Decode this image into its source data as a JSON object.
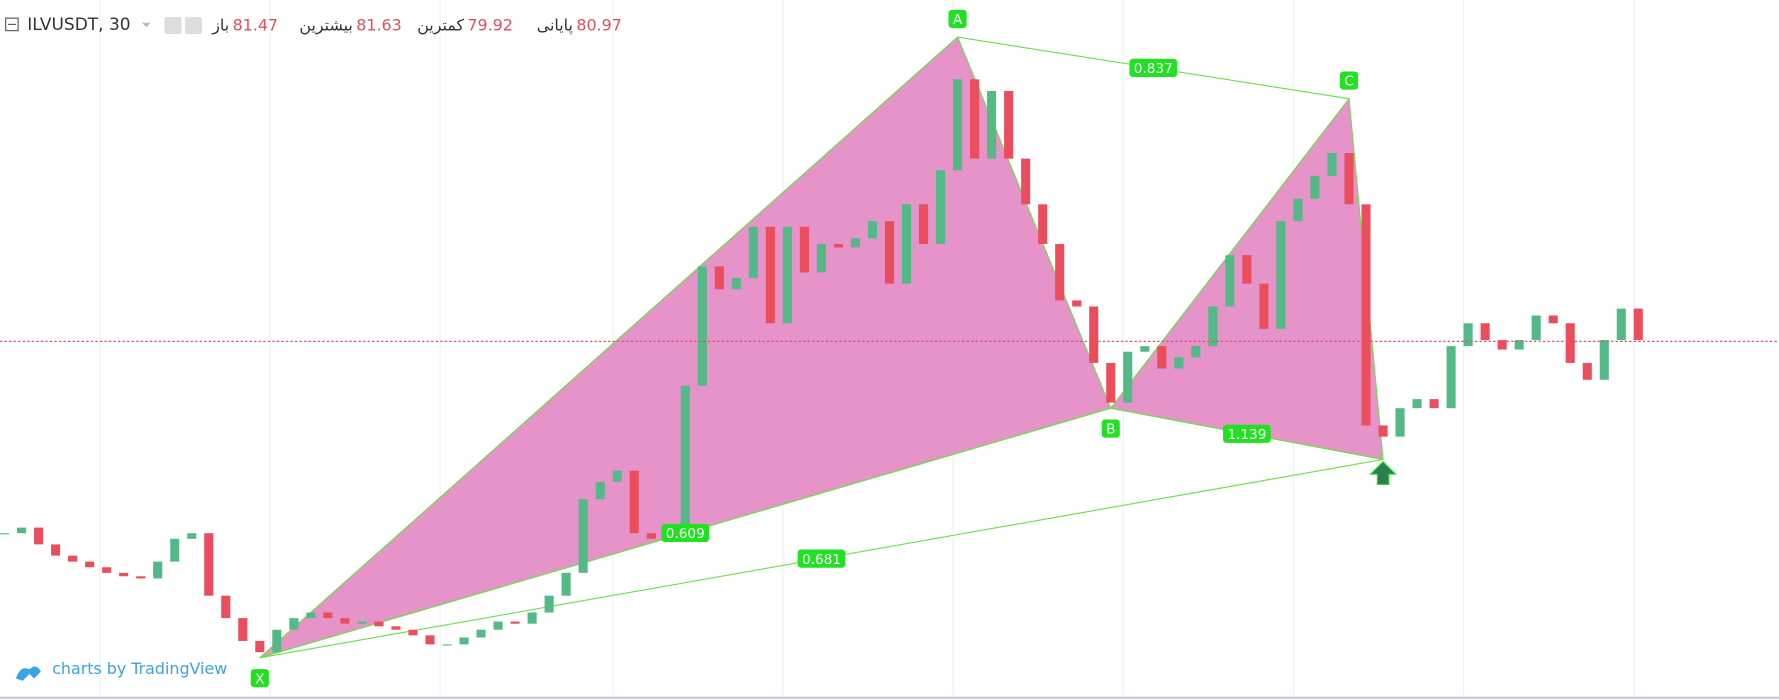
{
  "chart_data": {
    "type": "candlestick",
    "title": "ILVUSDT, 30",
    "ohlc_legend": [
      {
        "label": "باز",
        "value": 81.47
      },
      {
        "label": "بیشترین",
        "value": 81.63
      },
      {
        "label": "کمترین",
        "value": 79.92
      },
      {
        "label": "پایانی",
        "value": 80.97
      }
    ],
    "ylim": [
      72.65,
      88.89
    ],
    "up_color": "#53b987",
    "down_color": "#eb4d5c",
    "close": [
      76.52,
      76.65,
      76.26,
      76.0,
      75.86,
      75.73,
      75.6,
      75.52,
      75.47,
      75.86,
      76.39,
      76.52,
      75.07,
      74.55,
      74.02,
      73.76,
      74.28,
      74.55,
      74.68,
      74.55,
      74.42,
      74.47,
      74.36,
      74.28,
      74.15,
      73.94,
      73.94,
      74.1,
      74.28,
      74.47,
      74.42,
      74.68,
      75.07,
      75.6,
      77.31,
      77.71,
      77.97,
      76.52,
      76.39,
      76.52,
      79.94,
      82.71,
      82.18,
      82.44,
      83.63,
      81.39,
      83.63,
      82.57,
      83.23,
      83.15,
      83.36,
      83.76,
      82.31,
      84.15,
      83.23,
      84.94,
      87.05,
      85.21,
      86.78,
      85.21,
      84.15,
      83.23,
      81.92,
      81.78,
      80.47,
      79.55,
      80.73,
      80.86,
      80.34,
      80.6,
      80.86,
      81.78,
      82.97,
      82.31,
      81.26,
      83.76,
      84.28,
      84.81,
      85.34,
      84.15,
      79.02,
      78.76,
      79.42,
      79.63,
      79.42,
      80.86,
      81.39,
      81.0,
      80.78,
      81.0,
      81.57,
      81.39,
      80.47,
      80.08,
      81.0,
      81.73,
      81.0
    ],
    "pattern": {
      "fill": "#e593c8",
      "line_color": "#6bdf4a",
      "label_color": "#22e022",
      "points": [
        {
          "label": "X",
          "x": 15,
          "price": 73.63
        },
        {
          "label": "A",
          "x": 56,
          "price": 88.03
        },
        {
          "label": "B",
          "x": 65,
          "price": 79.42
        },
        {
          "label": "C",
          "x": 79,
          "price": 86.6
        },
        {
          "x": 81,
          "price": 78.23
        }
      ],
      "ratios": [
        0.609,
        0.837,
        1.139,
        0.681
      ]
    },
    "watermark": "charts by TradingView"
  }
}
